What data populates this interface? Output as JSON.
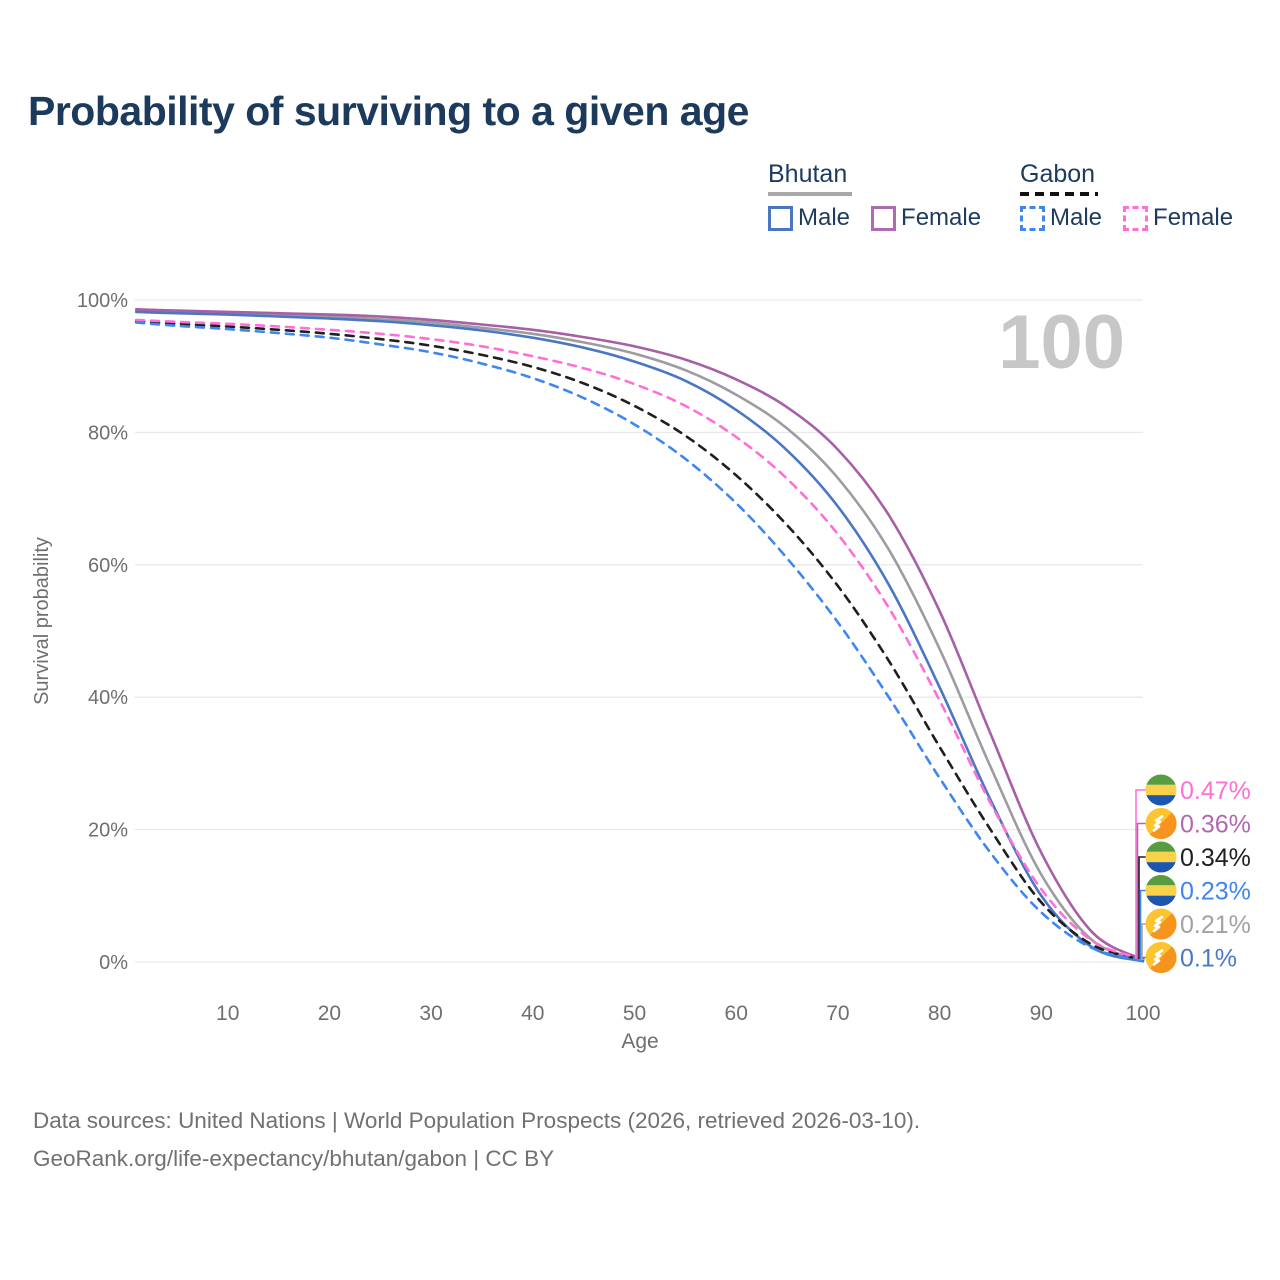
{
  "title": "Probability of surviving to a given age",
  "watermark": "100",
  "colors": {
    "title": "#1c3a5c",
    "legend_text": "#1d3a5f",
    "axis_text": "#6f6f6f",
    "grid": "#e9e9e9",
    "watermark": "#c7c7c7",
    "footer_text": "#717171"
  },
  "legend": {
    "groups": [
      {
        "name": "Bhutan",
        "underline_color": "#a8a8a8",
        "underline_dashed": false,
        "items": [
          {
            "label": "Male",
            "color": "#4a77c4",
            "dashed": false
          },
          {
            "label": "Female",
            "color": "#b06ab0",
            "dashed": false
          }
        ]
      },
      {
        "name": "Gabon",
        "underline_color": "#111111",
        "underline_dashed": true,
        "items": [
          {
            "label": "Male",
            "color": "#3e86f0",
            "dashed": true
          },
          {
            "label": "Female",
            "color": "#ff6fd6",
            "dashed": true
          }
        ]
      }
    ]
  },
  "chart_data": {
    "type": "line",
    "title": "Probability of surviving to a given age",
    "xlabel": "Age",
    "ylabel": "Survival probability",
    "xlim": [
      1,
      100
    ],
    "ylim": [
      0,
      100
    ],
    "x_ticks": [
      10,
      20,
      30,
      40,
      50,
      60,
      70,
      80,
      90,
      100
    ],
    "y_ticks": [
      0,
      20,
      40,
      60,
      80,
      100
    ],
    "y_tick_suffix": "%",
    "grid": "horizontal-only",
    "legend_position": "top-right",
    "x": [
      1,
      5,
      10,
      15,
      20,
      25,
      30,
      35,
      40,
      45,
      50,
      55,
      60,
      65,
      70,
      75,
      80,
      85,
      90,
      95,
      100
    ],
    "series": [
      {
        "id": "bhutan_male",
        "name": "Bhutan Male",
        "country": "Bhutan",
        "sex": "Male",
        "color": "#4a77c4",
        "dashed": false,
        "values": [
          98.2,
          98.0,
          97.8,
          97.5,
          97.2,
          96.8,
          96.2,
          95.4,
          94.3,
          92.8,
          90.7,
          87.8,
          83.4,
          77.3,
          68.8,
          57.0,
          41.5,
          24.5,
          10.0,
          2.2,
          0.1
        ]
      },
      {
        "id": "bhutan_female",
        "name": "Bhutan Female",
        "country": "Bhutan",
        "sex": "Female",
        "color": "#a75fa8",
        "dashed": false,
        "values": [
          98.6,
          98.4,
          98.2,
          98.0,
          97.8,
          97.5,
          97.0,
          96.3,
          95.5,
          94.4,
          93.0,
          91.0,
          88.0,
          83.8,
          77.4,
          67.5,
          53.0,
          34.5,
          16.5,
          4.5,
          0.36
        ]
      },
      {
        "id": "bhutan_both",
        "name": "Bhutan Both sexes",
        "country": "Bhutan",
        "sex": "Both",
        "color": "#9c9ca1",
        "dashed": false,
        "values": [
          98.4,
          98.2,
          98.0,
          97.7,
          97.5,
          97.1,
          96.6,
          95.8,
          94.9,
          93.6,
          91.9,
          89.4,
          85.7,
          80.6,
          73.1,
          62.3,
          47.3,
          29.5,
          13.2,
          3.3,
          0.21
        ]
      },
      {
        "id": "gabon_male",
        "name": "Gabon Male",
        "country": "Gabon",
        "sex": "Male",
        "color": "#3e86f0",
        "dashed": true,
        "values": [
          96.6,
          96.1,
          95.6,
          95.0,
          94.3,
          93.3,
          92.1,
          90.4,
          88.2,
          85.2,
          81.2,
          76.0,
          69.3,
          61.0,
          51.3,
          40.0,
          27.8,
          16.5,
          7.5,
          2.1,
          0.23
        ]
      },
      {
        "id": "gabon_female",
        "name": "Gabon Female",
        "country": "Gabon",
        "sex": "Female",
        "color": "#ff6fd6",
        "dashed": true,
        "values": [
          97.0,
          96.7,
          96.4,
          96.0,
          95.5,
          94.9,
          94.1,
          93.0,
          91.5,
          89.7,
          87.3,
          84.0,
          79.3,
          73.0,
          64.6,
          53.5,
          39.5,
          24.0,
          11.0,
          3.2,
          0.47
        ]
      },
      {
        "id": "gabon_both",
        "name": "Gabon Both sexes",
        "country": "Gabon",
        "sex": "Both",
        "color": "#1f1f1f",
        "dashed": true,
        "values": [
          96.8,
          96.4,
          96.0,
          95.5,
          94.9,
          94.1,
          93.1,
          91.7,
          89.9,
          87.4,
          84.0,
          79.5,
          73.5,
          66.0,
          56.8,
          45.5,
          32.5,
          20.0,
          9.0,
          2.6,
          0.34
        ]
      }
    ],
    "draw_order": [
      "bhutan_both",
      "bhutan_male",
      "bhutan_female",
      "gabon_both",
      "gabon_male",
      "gabon_female"
    ],
    "end_labels": [
      {
        "text": "0.47%",
        "color": "#ff6fd6",
        "flag": "gabon",
        "series_id": "gabon_female"
      },
      {
        "text": "0.36%",
        "color": "#b168af",
        "flag": "bhutan",
        "series_id": "bhutan_female"
      },
      {
        "text": "0.34%",
        "color": "#1f1f1f",
        "flag": "gabon",
        "series_id": "gabon_both"
      },
      {
        "text": "0.23%",
        "color": "#3e86f0",
        "flag": "gabon",
        "series_id": "gabon_male"
      },
      {
        "text": "0.21%",
        "color": "#a2a2a2",
        "flag": "bhutan",
        "series_id": "bhutan_both"
      },
      {
        "text": "0.1%",
        "color": "#4b79c8",
        "flag": "bhutan",
        "series_id": "bhutan_male"
      }
    ]
  },
  "footer": {
    "line1": "Data sources: United Nations | World Population Prospects (2026, retrieved 2026-03-10).",
    "line2": "GeoRank.org/life-expectancy/bhutan/gabon | CC BY"
  }
}
